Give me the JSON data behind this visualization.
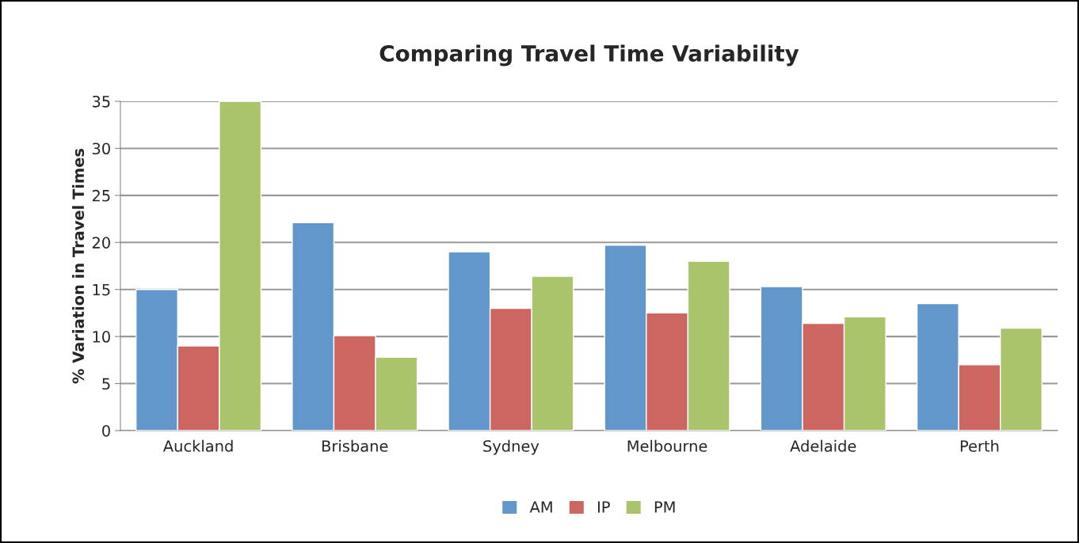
{
  "chart_data": {
    "type": "bar",
    "title": "Comparing Travel Time Variability",
    "ylabel": "% Variation in Travel Times",
    "categories": [
      "Auckland",
      "Brisbane",
      "Sydney",
      "Melbourne",
      "Adelaide",
      "Perth"
    ],
    "series": [
      {
        "name": "AM",
        "color": "#6197cb",
        "values": [
          15.0,
          22.1,
          19.0,
          19.7,
          15.3,
          13.5
        ]
      },
      {
        "name": "IP",
        "color": "#cd6560",
        "values": [
          9.0,
          10.1,
          13.0,
          12.5,
          11.4,
          7.0
        ]
      },
      {
        "name": "PM",
        "color": "#a9c46a",
        "values": [
          35.0,
          7.8,
          16.4,
          18.0,
          12.1,
          10.9
        ]
      }
    ],
    "ylim": [
      0,
      35
    ],
    "yticks": [
      0,
      5,
      10,
      15,
      20,
      25,
      30,
      35
    ],
    "grid": "y",
    "legend": "bottom"
  }
}
